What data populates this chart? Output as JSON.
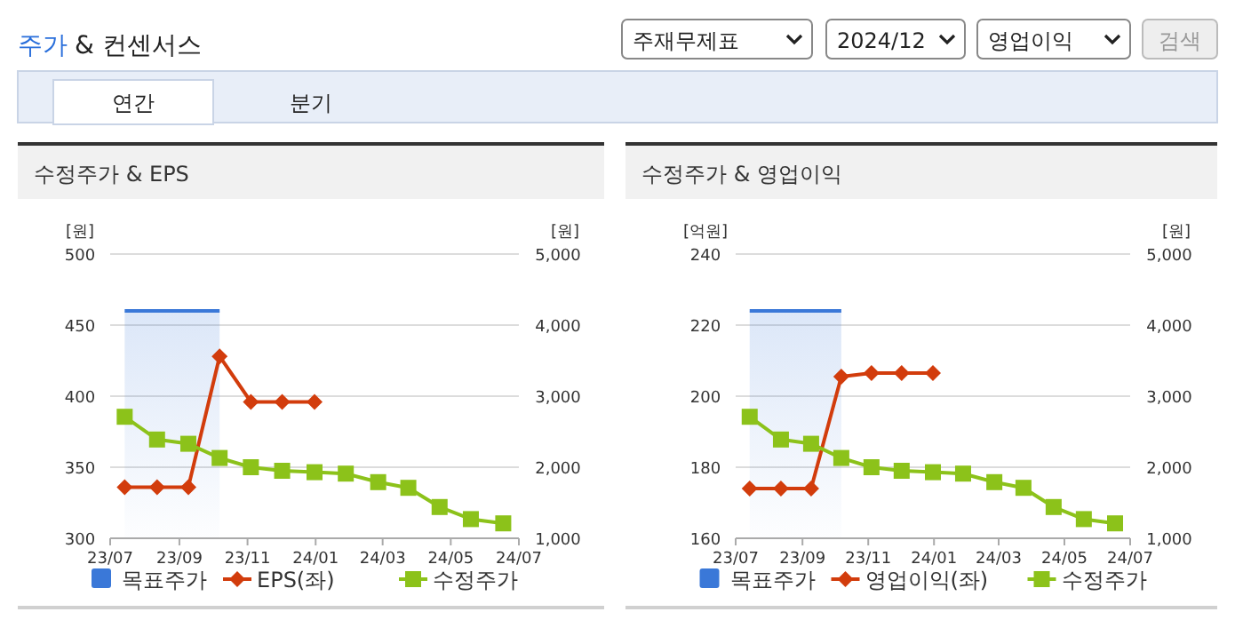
{
  "chart_data": [
    {
      "type": "line",
      "title": "수정주가 & EPS",
      "ylabel": "[원]",
      "y2label": "[원]",
      "annotations": [
        "주가",
        "& 컨센서스",
        "주재무제표",
        "2024/12",
        "영업이익",
        "검색",
        "연간",
        "분기"
      ],
      "x": [
        "2023-07-14",
        "2023-08-12",
        "2023-09-09",
        "2023-10-07",
        "2023-11-04",
        "2023-12-02",
        "2023-12-31",
        "2024-01-28",
        "2024-02-26",
        "2024-03-24",
        "2024-04-21",
        "2024-05-19",
        "2024-06-17"
      ],
      "xlim": [
        "2023-07-01",
        "2024-07-01"
      ],
      "xticks": [
        {
          "value": "2023-07-01",
          "label": "23/07"
        },
        {
          "value": "2023-09-01",
          "label": "23/09"
        },
        {
          "value": "2023-11-01",
          "label": "23/11"
        },
        {
          "value": "2024-01-01",
          "label": "24/01"
        },
        {
          "value": "2024-03-01",
          "label": "24/03"
        },
        {
          "value": "2024-05-01",
          "label": "24/05"
        },
        {
          "value": "2024-07-01",
          "label": "24/07"
        }
      ],
      "ylim": [
        300,
        500
      ],
      "yticks": [
        300,
        350,
        400,
        450,
        500
      ],
      "y2lim": [
        1000,
        5000
      ],
      "y2ticks": [
        {
          "value": 1000,
          "label": "1,000"
        },
        {
          "value": 2000,
          "label": "2,000"
        },
        {
          "value": 3000,
          "label": "3,000"
        },
        {
          "value": 4000,
          "label": "4,000"
        },
        {
          "value": 5000,
          "label": "5,000"
        }
      ],
      "grid": "y",
      "legend": "bottom",
      "series": [
        {
          "name": "목표주가",
          "type": "area",
          "axis": "y2",
          "color": "#3a78d8",
          "values": [
            4200,
            4200,
            4200,
            4200,
            null,
            null,
            null,
            null,
            null,
            null,
            null,
            null,
            null
          ]
        },
        {
          "name": "EPS(좌)",
          "type": "line",
          "marker": "diamond",
          "color": "#d23c0c",
          "values": [
            336,
            336,
            336,
            428,
            396,
            396,
            396,
            null,
            null,
            null,
            null,
            null,
            null
          ]
        },
        {
          "name": "수정주가",
          "type": "line",
          "marker": "square",
          "axis": "y2",
          "color": "#8cc21a",
          "values": [
            2710,
            2390,
            2330,
            2130,
            2000,
            1950,
            1930,
            1910,
            1790,
            1710,
            1440,
            1270,
            1210
          ]
        }
      ]
    },
    {
      "type": "line",
      "title": "수정주가 & 영업이익",
      "ylabel": "[억원]",
      "y2label": "[원]",
      "x": [
        "2023-07-14",
        "2023-08-12",
        "2023-09-09",
        "2023-10-07",
        "2023-11-04",
        "2023-12-02",
        "2023-12-31",
        "2024-01-28",
        "2024-02-26",
        "2024-03-24",
        "2024-04-21",
        "2024-05-19",
        "2024-06-17"
      ],
      "xlim": [
        "2023-07-01",
        "2024-07-01"
      ],
      "xticks": [
        {
          "value": "2023-07-01",
          "label": "23/07"
        },
        {
          "value": "2023-09-01",
          "label": "23/09"
        },
        {
          "value": "2023-11-01",
          "label": "23/11"
        },
        {
          "value": "2024-01-01",
          "label": "24/01"
        },
        {
          "value": "2024-03-01",
          "label": "24/03"
        },
        {
          "value": "2024-05-01",
          "label": "24/05"
        },
        {
          "value": "2024-07-01",
          "label": "24/07"
        }
      ],
      "ylim": [
        160,
        240
      ],
      "yticks": [
        160,
        180,
        200,
        220,
        240
      ],
      "y2lim": [
        1000,
        5000
      ],
      "y2ticks": [
        {
          "value": 1000,
          "label": "1,000"
        },
        {
          "value": 2000,
          "label": "2,000"
        },
        {
          "value": 3000,
          "label": "3,000"
        },
        {
          "value": 4000,
          "label": "4,000"
        },
        {
          "value": 5000,
          "label": "5,000"
        }
      ],
      "grid": "y",
      "legend": "bottom",
      "series": [
        {
          "name": "목표주가",
          "type": "area",
          "axis": "y2",
          "color": "#3a78d8",
          "values": [
            4200,
            4200,
            4200,
            4200,
            null,
            null,
            null,
            null,
            null,
            null,
            null,
            null,
            null
          ]
        },
        {
          "name": "영업이익(좌)",
          "type": "line",
          "marker": "diamond",
          "color": "#d23c0c",
          "values": [
            174,
            174,
            174,
            205.5,
            206.5,
            206.5,
            206.5,
            null,
            null,
            null,
            null,
            null,
            null
          ]
        },
        {
          "name": "수정주가",
          "type": "line",
          "marker": "square",
          "axis": "y2",
          "color": "#8cc21a",
          "values": [
            2710,
            2390,
            2330,
            2130,
            2000,
            1950,
            1930,
            1910,
            1790,
            1710,
            1440,
            1270,
            1210
          ]
        }
      ]
    }
  ]
}
